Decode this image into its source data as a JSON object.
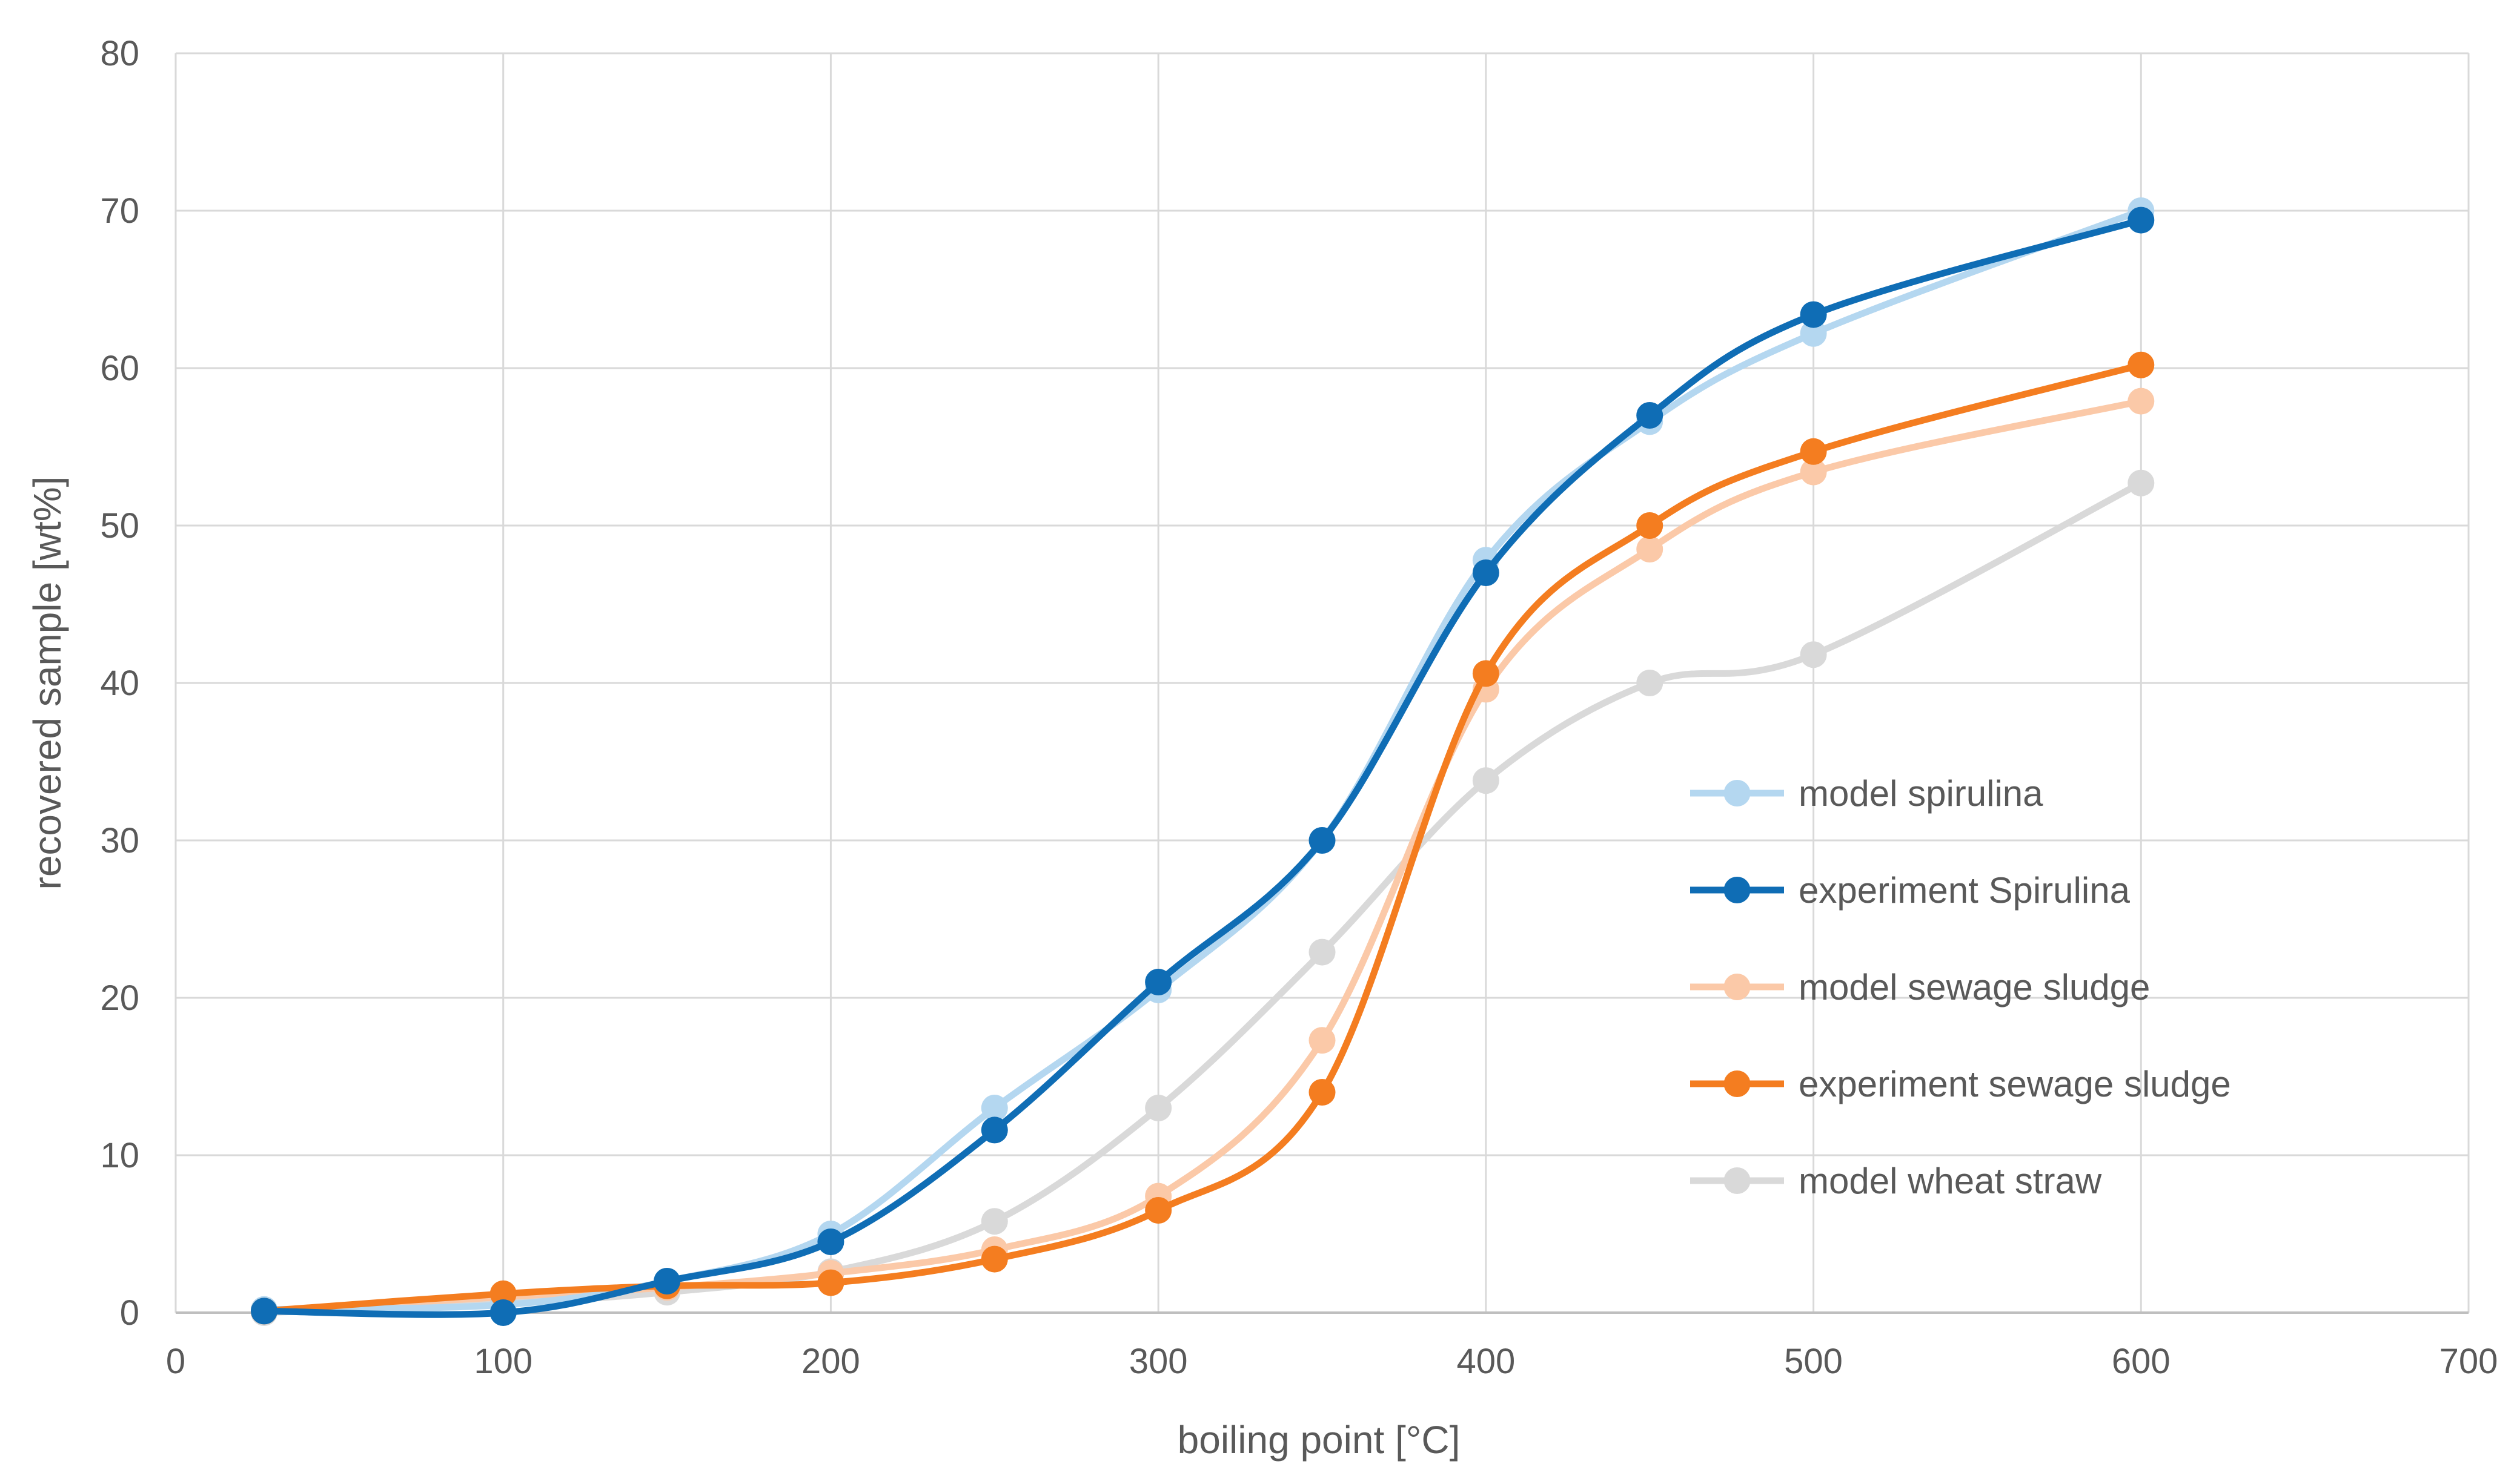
{
  "chart_data": {
    "type": "line",
    "title": "",
    "xlabel": "boiling point [°C]",
    "ylabel": "recovered sample [wt%]",
    "xlim": [
      0,
      700
    ],
    "ylim": [
      0,
      80
    ],
    "xticks": [
      0,
      100,
      200,
      300,
      400,
      500,
      600,
      700
    ],
    "yticks": [
      0,
      10,
      20,
      30,
      40,
      50,
      60,
      70,
      80
    ],
    "grid": true,
    "legend_position": "right",
    "series": [
      {
        "name": "model spirulina",
        "color": "#b4d7f0",
        "x": [
          27,
          100,
          150,
          200,
          250,
          300,
          350,
          400,
          450,
          500,
          600
        ],
        "y": [
          0.2,
          0.5,
          2.0,
          5.0,
          13.0,
          20.5,
          30.0,
          47.8,
          56.6,
          62.2,
          70.0
        ]
      },
      {
        "name": "experiment Spirulina",
        "color": "#0f6db5",
        "x": [
          27,
          100,
          150,
          200,
          250,
          300,
          350,
          400,
          450,
          500,
          600
        ],
        "y": [
          0.1,
          0.0,
          2.0,
          4.5,
          11.6,
          21.0,
          30.0,
          47.0,
          57.0,
          63.4,
          69.4
        ]
      },
      {
        "name": "model sewage sludge",
        "color": "#fbc9a8",
        "x": [
          27,
          100,
          150,
          200,
          250,
          300,
          350,
          400,
          450,
          500,
          600
        ],
        "y": [
          0.1,
          1.0,
          1.6,
          2.5,
          4.0,
          7.4,
          17.3,
          39.6,
          48.5,
          53.4,
          57.9
        ]
      },
      {
        "name": "experiment sewage sludge",
        "color": "#f47d20",
        "x": [
          27,
          100,
          150,
          200,
          250,
          300,
          350,
          400,
          450,
          500,
          600
        ],
        "y": [
          0.1,
          1.2,
          1.7,
          1.9,
          3.4,
          6.5,
          14.0,
          40.6,
          50.0,
          54.7,
          60.2
        ]
      },
      {
        "name": "model wheat straw",
        "color": "#d9d9d9",
        "x": [
          27,
          100,
          150,
          200,
          250,
          300,
          350,
          400,
          450,
          500,
          600
        ],
        "y": [
          0.0,
          0.6,
          1.3,
          2.6,
          5.8,
          13.0,
          22.9,
          33.8,
          40.0,
          41.8,
          52.7
        ]
      }
    ]
  }
}
